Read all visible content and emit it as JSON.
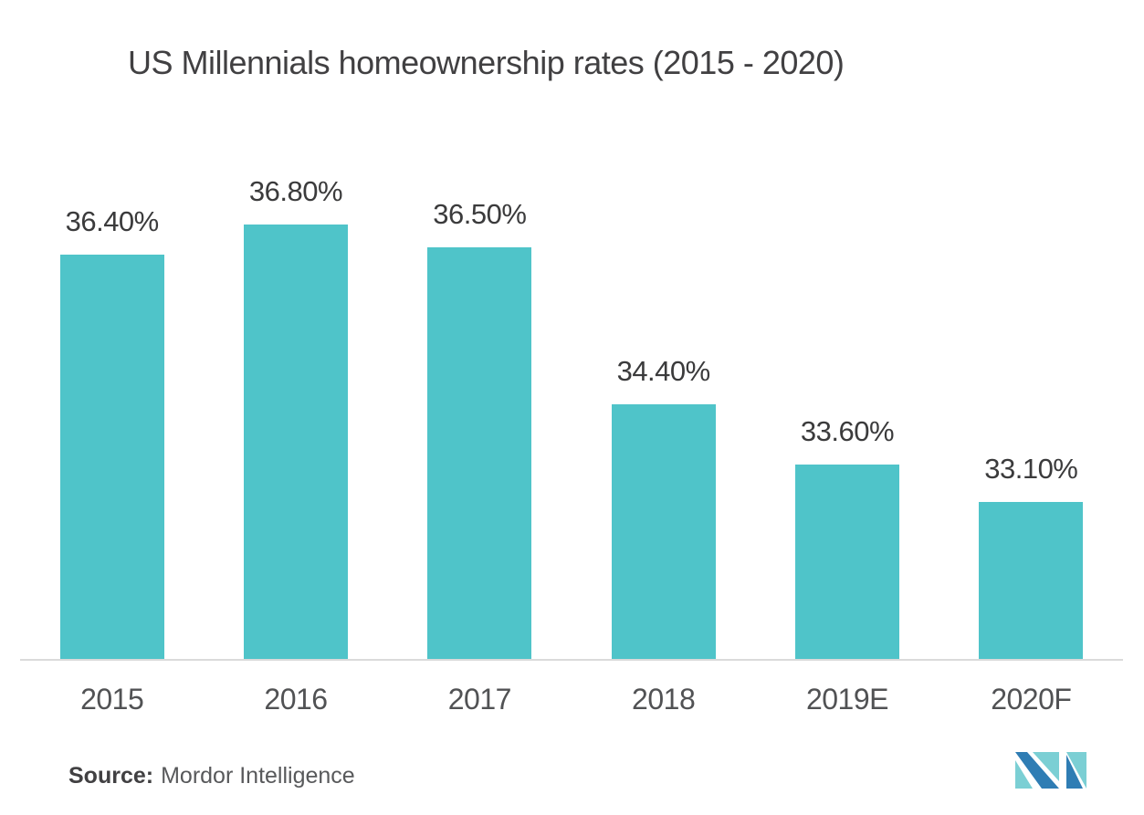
{
  "title": "US Millennials homeownership rates (2015 - 2020)",
  "source": {
    "label": "Source:",
    "text": "Mordor Intelligence"
  },
  "colors": {
    "bar": "#4FC4C9",
    "axis_line": "#DADADA",
    "logo_teal": "#7BCFD4",
    "logo_blue": "#2F7DB4"
  },
  "chart_data": {
    "type": "bar",
    "title": "US Millennials homeownership rates (2015 - 2020)",
    "categories": [
      "2015",
      "2016",
      "2017",
      "2018",
      "2019E",
      "2020F"
    ],
    "values": [
      36.4,
      36.8,
      36.5,
      34.4,
      33.6,
      33.1
    ],
    "value_labels": [
      "36.40%",
      "36.80%",
      "36.50%",
      "34.40%",
      "33.60%",
      "33.10%"
    ],
    "xlabel": "",
    "ylabel": "",
    "ylim": [
      31,
      37.8
    ],
    "grid": false,
    "legend": "none",
    "bar_color": "#4FC4C9"
  }
}
